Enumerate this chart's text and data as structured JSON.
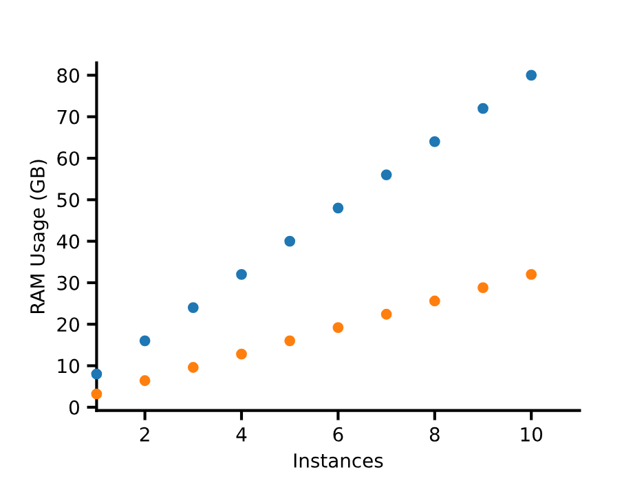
{
  "chart_data": {
    "type": "scatter",
    "xlabel": "Instances",
    "ylabel": "RAM Usage (GB)",
    "x": [
      1,
      2,
      3,
      4,
      5,
      6,
      7,
      8,
      9,
      10
    ],
    "series": [
      {
        "color": "#1f77b4",
        "values": [
          8,
          16,
          24,
          32,
          40,
          48,
          56,
          64,
          72,
          80
        ]
      },
      {
        "color": "#ff7f0e",
        "values": [
          3.2,
          6.4,
          9.6,
          12.8,
          16,
          19.2,
          22.4,
          25.6,
          28.8,
          32
        ]
      }
    ],
    "xlim": [
      1,
      11
    ],
    "ylim": [
      -0.8,
      83
    ],
    "xticks": [
      2,
      4,
      6,
      8,
      10
    ],
    "yticks": [
      0,
      10,
      20,
      30,
      40,
      50,
      60,
      70,
      80
    ],
    "marker": "circle",
    "grid": false,
    "legend": false
  }
}
